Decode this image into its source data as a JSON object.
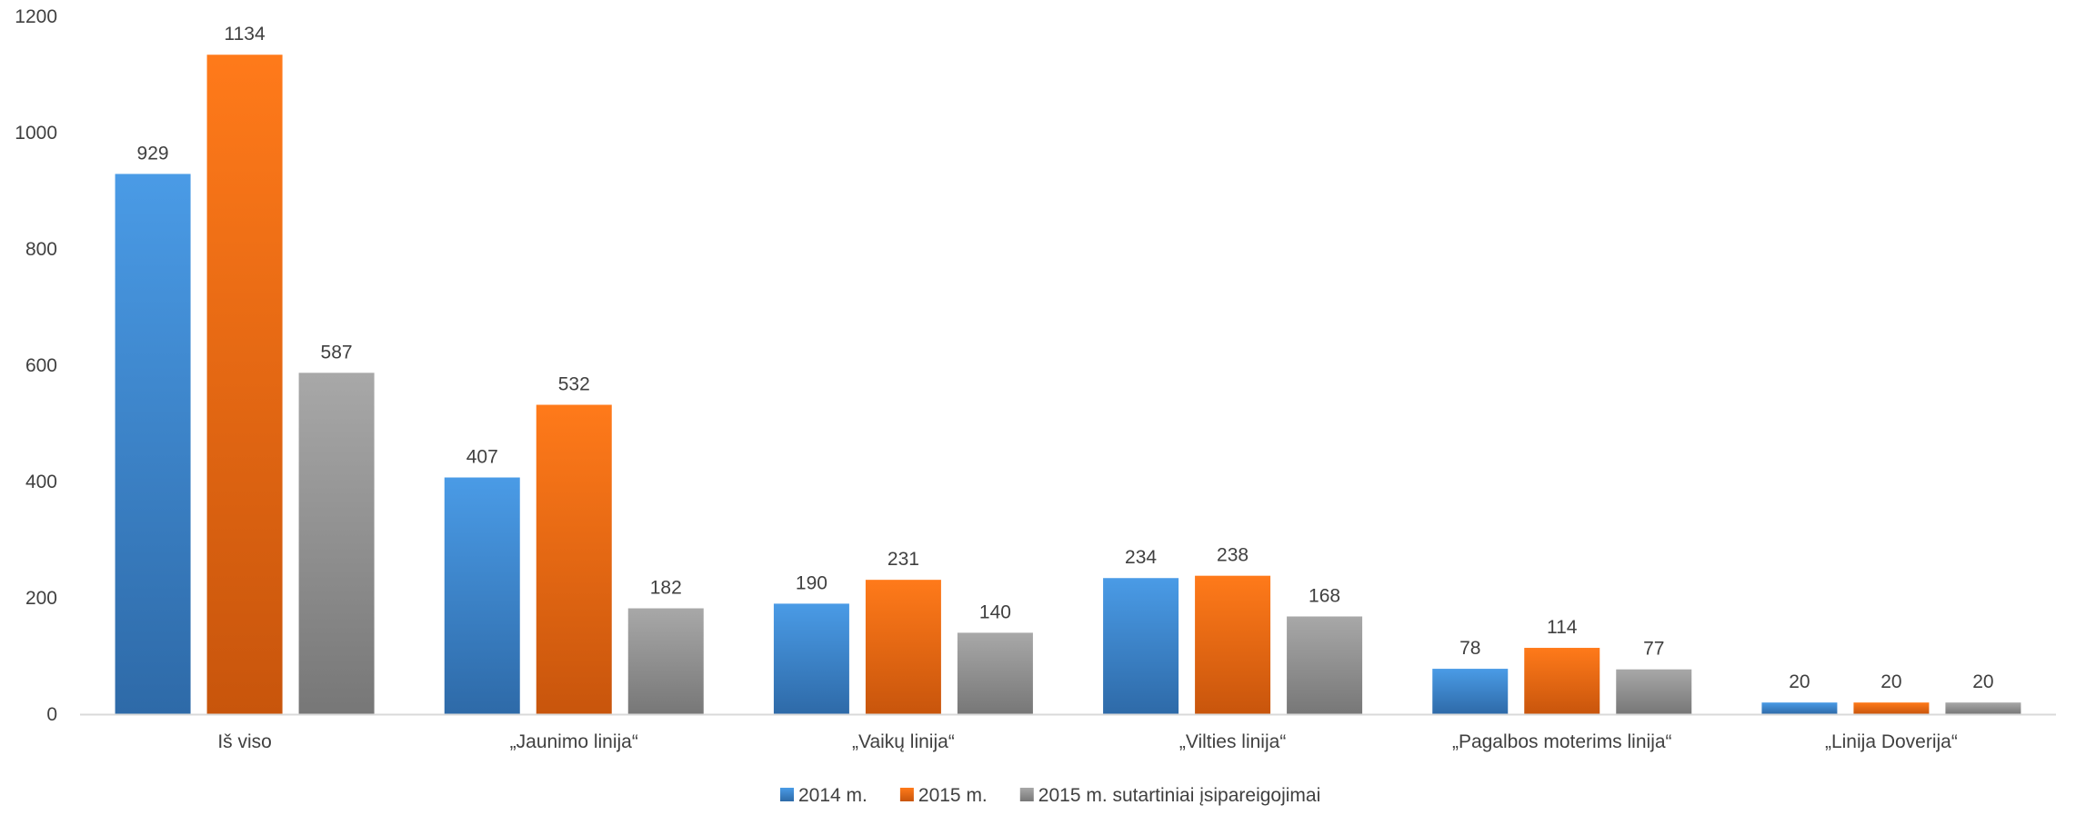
{
  "chart_data": {
    "type": "bar",
    "categories": [
      "Iš viso",
      "„Jaunimo linija“",
      "„Vaikų linija“",
      "„Vilties linija“",
      "„Pagalbos moterims linija“",
      "„Linija Doverija“"
    ],
    "series": [
      {
        "name": "2014 m.",
        "values": [
          929,
          407,
          190,
          234,
          78,
          20
        ],
        "color": "#3d85cf"
      },
      {
        "name": "2015 m.",
        "values": [
          1134,
          532,
          231,
          238,
          114,
          20
        ],
        "color": "#ec6a11"
      },
      {
        "name": "2015 m. sutartiniai įsipareigojimai",
        "values": [
          587,
          182,
          140,
          168,
          77,
          20
        ],
        "color": "#8f8f8f"
      }
    ],
    "ylim": [
      0,
      1200
    ],
    "yticks": [
      0,
      200,
      400,
      600,
      800,
      1000,
      1200
    ],
    "grid": false,
    "legend": "bottom",
    "data_labels": true
  }
}
